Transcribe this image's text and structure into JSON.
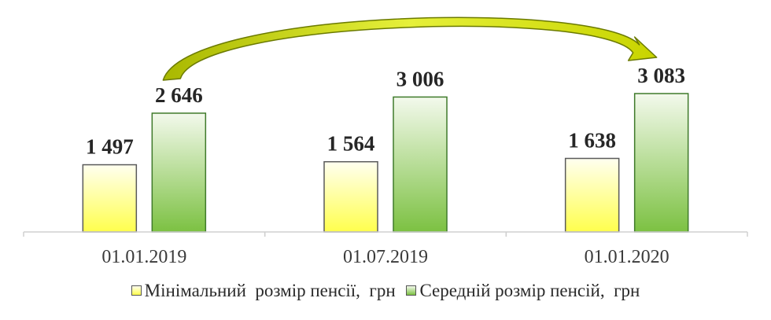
{
  "chart_data": {
    "type": "bar",
    "categories": [
      "01.01.2019",
      "01.07.2019",
      "01.01.2020"
    ],
    "series": [
      {
        "name": "Мінімальний  розмір пенсії,  грн",
        "values": [
          1497,
          1564,
          1638
        ],
        "value_labels": [
          "1 497",
          "1 564",
          "1 638"
        ],
        "color": "#ffff66"
      },
      {
        "name": "Середній розмір пенсій,  грн",
        "values": [
          2646,
          3006,
          3083
        ],
        "value_labels": [
          "2 646",
          "3 006",
          "3 083"
        ],
        "color": "#8cc84b"
      }
    ],
    "ylim": [
      0,
      3083
    ],
    "grid": false,
    "legend": "bottom",
    "arrow": {
      "from": "01.01.2019",
      "to": "01.01.2020",
      "color": "#c8d400"
    }
  }
}
